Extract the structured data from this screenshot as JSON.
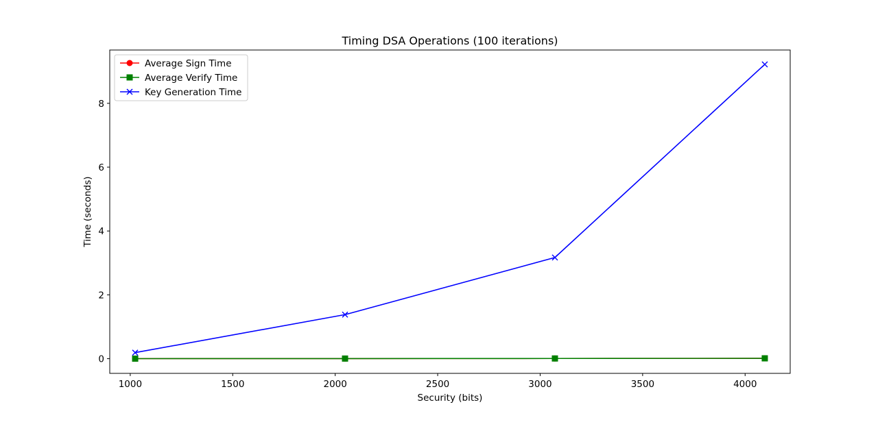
{
  "chart_data": {
    "type": "line",
    "title": "Timing DSA Operations (100 iterations)",
    "xlabel": "Security (bits)",
    "ylabel": "Time (seconds)",
    "x": [
      1024,
      2048,
      3072,
      4096
    ],
    "xlim": [
      900,
      4220
    ],
    "ylim": [
      -0.46,
      9.67
    ],
    "xticks": [
      1000,
      1500,
      2000,
      2500,
      3000,
      3500,
      4000
    ],
    "yticks": [
      0,
      2,
      4,
      6,
      8
    ],
    "grid": false,
    "legend_position": "upper left",
    "series": [
      {
        "name": "Average Sign Time",
        "color": "#ff0000",
        "marker": "circle",
        "values": [
          0.0015,
          0.0035,
          0.0065,
          0.011
        ]
      },
      {
        "name": "Average Verify Time",
        "color": "#008000",
        "marker": "square",
        "values": [
          0.0015,
          0.0035,
          0.0065,
          0.011
        ]
      },
      {
        "name": "Key Generation Time",
        "color": "#0000ff",
        "marker": "x",
        "values": [
          0.19,
          1.38,
          3.17,
          9.22
        ]
      }
    ]
  }
}
